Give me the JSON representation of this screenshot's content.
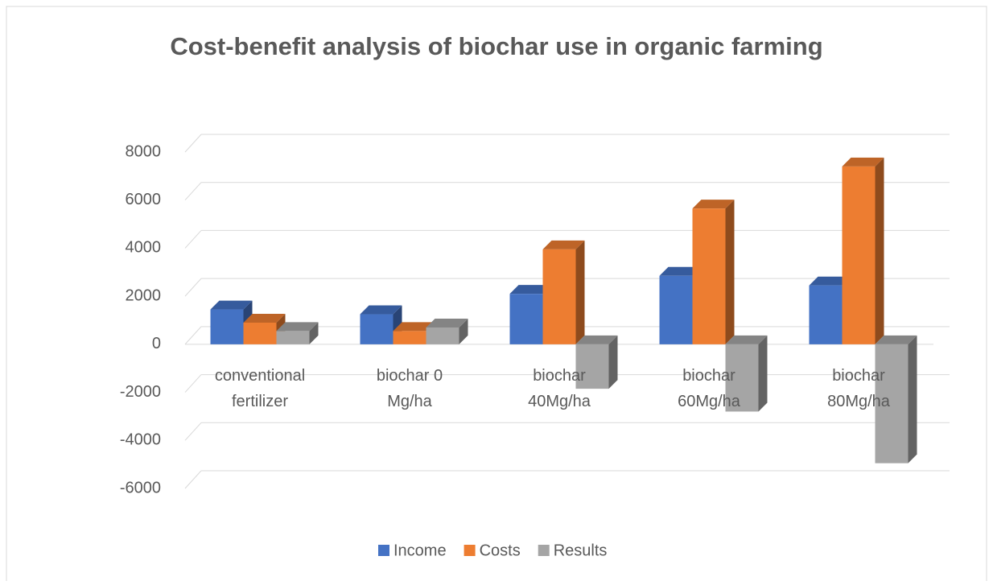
{
  "chart_data": {
    "type": "bar3d",
    "title": "Cost-benefit analysis of biochar use in organic farming",
    "categories": [
      "conventional fertilizer",
      "biochar 0 Mg/ha",
      "biochar 40Mg/ha",
      "biochar 60Mg/ha",
      "biochar 80Mg/ha"
    ],
    "series": [
      {
        "name": "Income",
        "color": "#4472c4",
        "values": [
          1450,
          1250,
          2100,
          2850,
          2450
        ]
      },
      {
        "name": "Costs",
        "color": "#ed7d31",
        "values": [
          900,
          550,
          3950,
          5650,
          7400
        ]
      },
      {
        "name": "Results",
        "color": "#a5a5a5",
        "values": [
          550,
          700,
          -1850,
          -2800,
          -4950
        ]
      }
    ],
    "ylim": [
      -6000,
      8000
    ],
    "yticks": [
      -6000,
      -4000,
      -2000,
      0,
      2000,
      4000,
      6000,
      8000
    ],
    "grid": true,
    "legend": "bottom"
  }
}
